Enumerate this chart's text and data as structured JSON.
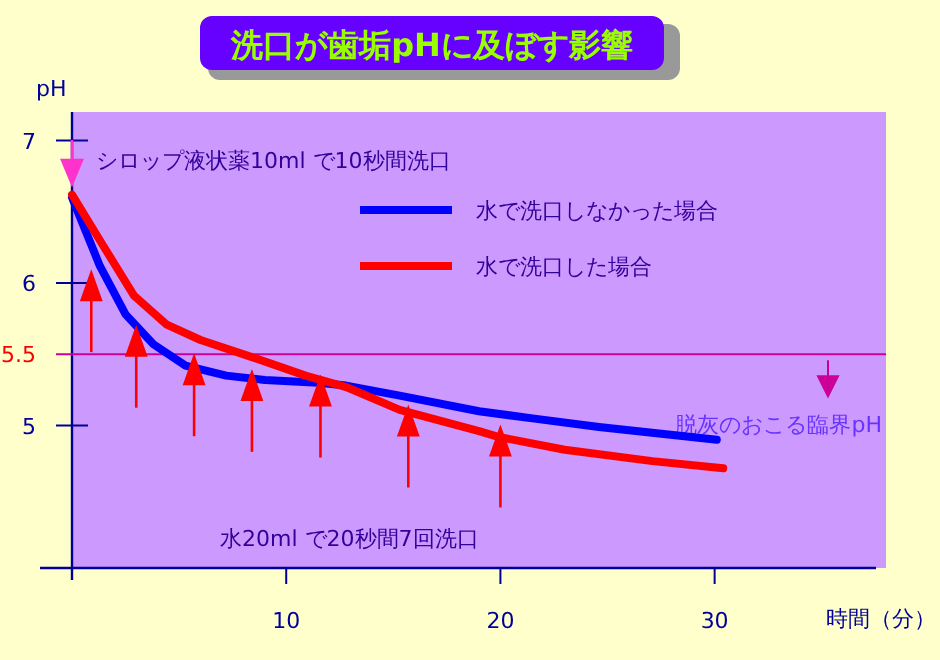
{
  "chart_data": {
    "type": "line",
    "title": "洗口が歯垢pHに及ぼす影響",
    "xlabel": "時間（分）",
    "ylabel": "pH",
    "xlim": [
      0,
      38
    ],
    "ylim": [
      4,
      7.2
    ],
    "xticks": [
      10,
      20,
      30
    ],
    "yticks": [
      7,
      6,
      5.5,
      5
    ],
    "legend": "top right",
    "line_style": "solid",
    "series": [
      {
        "name": "水で洗口しなかった場合",
        "color": "#0000ff",
        "x": [
          0,
          1.3,
          2.5,
          3.8,
          5.3,
          7.2,
          9,
          11.5,
          12.8,
          15.3,
          19,
          21.5,
          24.6,
          30.1
        ],
        "values": [
          6.6,
          6.12,
          5.78,
          5.57,
          5.42,
          5.35,
          5.32,
          5.3,
          5.28,
          5.21,
          5.1,
          5.05,
          4.99,
          4.9
        ]
      },
      {
        "name": "水で洗口した場合",
        "color": "#ff0000",
        "x": [
          0,
          1.3,
          2.9,
          4.4,
          6,
          8.4,
          10.9,
          12.8,
          15.3,
          19,
          19.9,
          23,
          27.1,
          30.4
        ],
        "values": [
          6.62,
          6.3,
          5.91,
          5.71,
          5.6,
          5.48,
          5.35,
          5.27,
          5.11,
          4.96,
          4.92,
          4.83,
          4.75,
          4.7
        ]
      },
      {
        "type": "scatter",
        "marker": "triangle",
        "color": "#ff0000",
        "x": [
          0.9,
          3,
          5.7,
          8.4,
          11.6,
          15.7,
          20
        ],
        "values": [
          5.95,
          5.56,
          5.36,
          5.25,
          5.21,
          5.0,
          4.86
        ]
      }
    ],
    "ref_lines": [
      {
        "axis": "y",
        "value": 5.5,
        "label": "脱灰のおこる臨界pH",
        "color": "#cc0099"
      }
    ],
    "annotations": [
      "シロップ液状薬10ml で10秒間洗口",
      "水20ml で20秒間7回洗口"
    ]
  }
}
